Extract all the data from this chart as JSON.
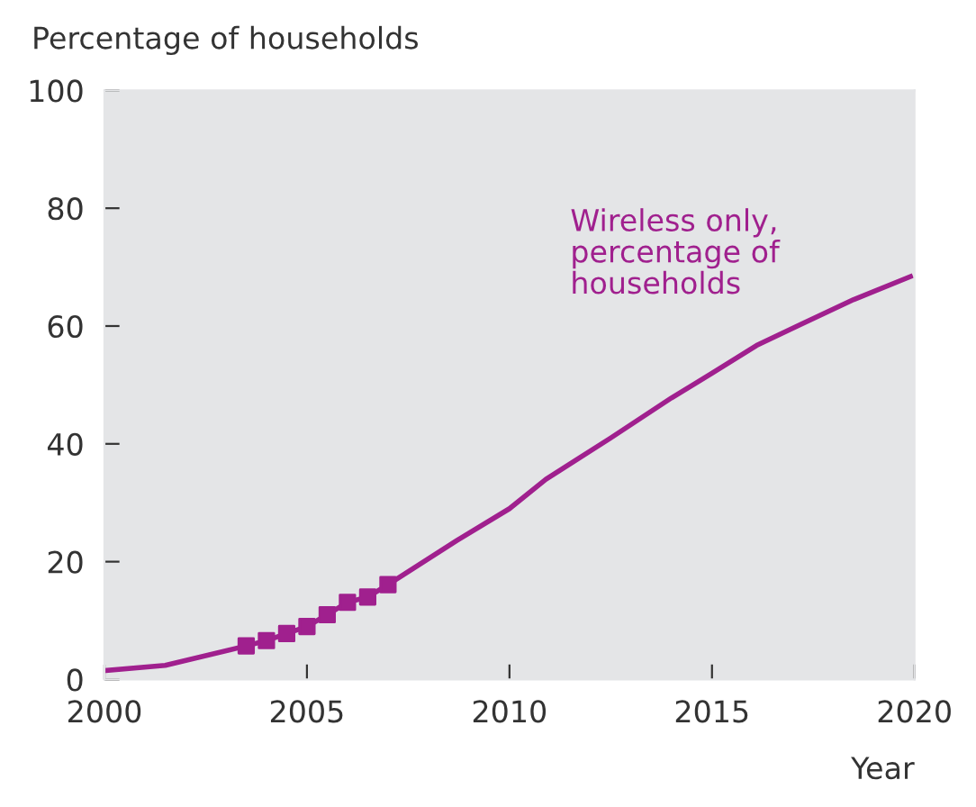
{
  "chart_data": {
    "type": "line",
    "ylabel": "Percentage of households",
    "xlabel": "Year",
    "xlim": [
      2000,
      2020
    ],
    "xticks": [
      2000,
      2005,
      2010,
      2015,
      2020
    ],
    "ylim": [
      0,
      100
    ],
    "yticks": [
      0,
      20,
      40,
      60,
      80,
      100
    ],
    "grid": false,
    "legend": false,
    "series": [
      {
        "name": "Wireless only,\npercentage of\nhouseholds",
        "color": "#a0208e",
        "marker": "none",
        "x": [
          2000,
          2001.5,
          2003.5,
          2004,
          2004.5,
          2005,
          2005.5,
          2006,
          2006.5,
          2007,
          2008.7,
          2010,
          2010.9,
          2012.5,
          2014,
          2015,
          2016.1,
          2017.2,
          2018.5,
          2019.9
        ],
        "values": [
          1.5,
          2.4,
          5.7,
          6.6,
          7.8,
          9.0,
          11.0,
          13.1,
          14.0,
          16.1,
          23.6,
          29,
          34,
          41,
          47.8,
          52,
          56.7,
          60.3,
          64.5,
          68.4
        ]
      },
      {
        "type": "scatter",
        "color": "#a0208e",
        "marker": "square",
        "x": [
          2003.5,
          2004,
          2004.5,
          2005,
          2005.5,
          2006,
          2006.5,
          2007
        ],
        "values": [
          5.7,
          6.6,
          7.8,
          9.0,
          11.0,
          13.1,
          14.0,
          16.1
        ]
      }
    ]
  }
}
